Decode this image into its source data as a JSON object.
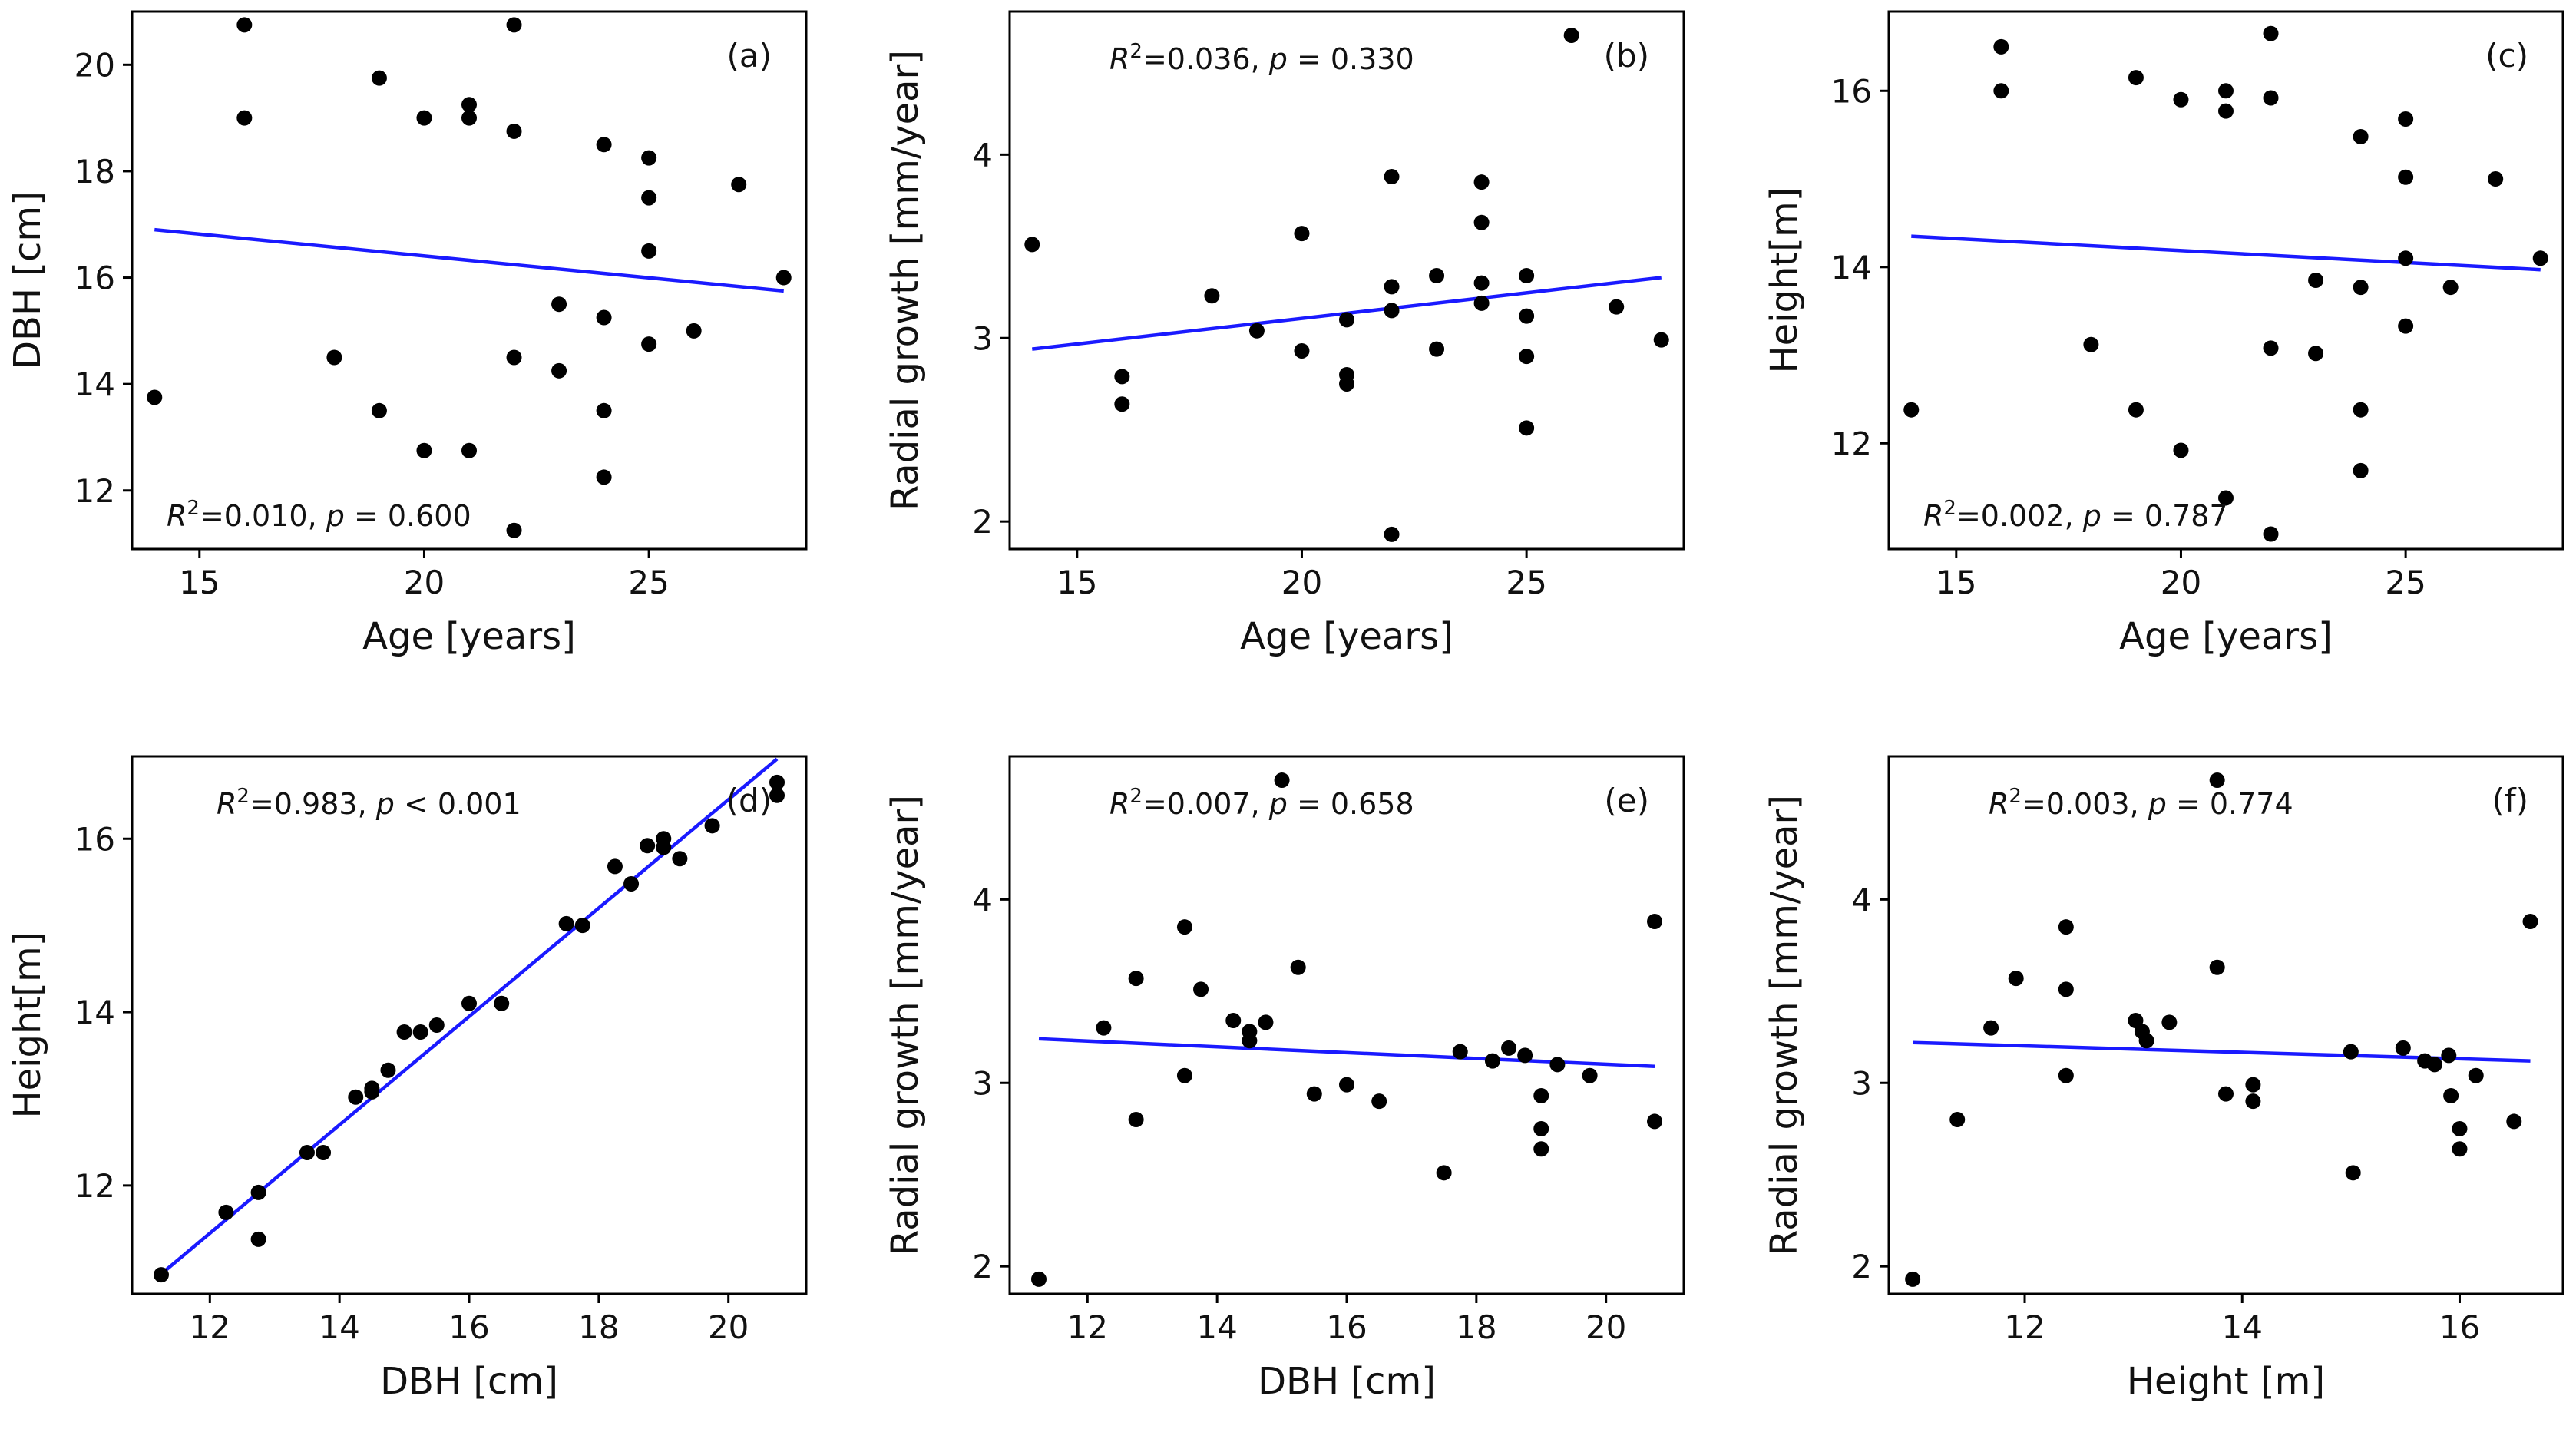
{
  "chart_data": [
    {
      "id": "a",
      "type": "scatter",
      "panel_label": "(a)",
      "xlabel": "Age [years]",
      "ylabel": "DBH [cm]",
      "xlim": [
        13.5,
        28.5
      ],
      "ylim": [
        10.9,
        21.0
      ],
      "xticks": [
        15,
        20,
        25
      ],
      "yticks": [
        12,
        14,
        16,
        18,
        20
      ],
      "stat_r2": "0.010",
      "stat_p": "p = 0.600",
      "stat_position": "bottom-left",
      "points": [
        [
          14,
          13.75
        ],
        [
          16,
          20.75
        ],
        [
          16,
          19.0
        ],
        [
          18,
          14.5
        ],
        [
          19,
          19.75
        ],
        [
          19,
          13.5
        ],
        [
          20,
          19.0
        ],
        [
          20,
          12.75
        ],
        [
          21,
          19.25
        ],
        [
          21,
          19.0
        ],
        [
          21,
          12.75
        ],
        [
          22,
          20.75
        ],
        [
          22,
          18.75
        ],
        [
          22,
          14.5
        ],
        [
          22,
          11.25
        ],
        [
          23,
          15.5
        ],
        [
          23,
          14.25
        ],
        [
          24,
          18.5
        ],
        [
          24,
          15.25
        ],
        [
          24,
          13.5
        ],
        [
          24,
          12.25
        ],
        [
          25,
          18.25
        ],
        [
          25,
          17.5
        ],
        [
          25,
          16.5
        ],
        [
          25,
          14.75
        ],
        [
          26,
          15.0
        ],
        [
          27,
          17.75
        ],
        [
          28,
          16.0
        ]
      ],
      "fit_line": [
        [
          14,
          16.9
        ],
        [
          28,
          15.75
        ]
      ]
    },
    {
      "id": "b",
      "type": "scatter",
      "panel_label": "(b)",
      "xlabel": "Age [years]",
      "ylabel": "Radial growth [mm/year]",
      "xlim": [
        13.5,
        28.5
      ],
      "ylim": [
        1.85,
        4.78
      ],
      "xticks": [
        15,
        20,
        25
      ],
      "yticks": [
        2,
        3,
        4
      ],
      "stat_r2": "0.036",
      "stat_p": "p = 0.330",
      "stat_position": "top-left",
      "points": [
        [
          14,
          3.51
        ],
        [
          16,
          2.79
        ],
        [
          16,
          2.64
        ],
        [
          18,
          3.23
        ],
        [
          19,
          3.04
        ],
        [
          20,
          3.57
        ],
        [
          20,
          2.93
        ],
        [
          21,
          3.1
        ],
        [
          21,
          2.8
        ],
        [
          21,
          2.75
        ],
        [
          22,
          3.88
        ],
        [
          22,
          3.28
        ],
        [
          22,
          3.15
        ],
        [
          22,
          1.93
        ],
        [
          23,
          3.34
        ],
        [
          23,
          2.94
        ],
        [
          24,
          3.85
        ],
        [
          24,
          3.63
        ],
        [
          24,
          3.3
        ],
        [
          24,
          3.19
        ],
        [
          25,
          3.34
        ],
        [
          25,
          3.12
        ],
        [
          25,
          2.9
        ],
        [
          25,
          2.51
        ],
        [
          26,
          4.65
        ],
        [
          27,
          3.17
        ],
        [
          28,
          2.99
        ]
      ],
      "fit_line": [
        [
          14,
          2.94
        ],
        [
          28,
          3.33
        ]
      ]
    },
    {
      "id": "c",
      "type": "scatter",
      "panel_label": "(c)",
      "xlabel": "Age [years]",
      "ylabel": "Height[m]",
      "xlim": [
        13.5,
        28.5
      ],
      "ylim": [
        10.8,
        16.9
      ],
      "xticks": [
        15,
        20,
        25
      ],
      "yticks": [
        12,
        14,
        16
      ],
      "stat_r2": "0.002",
      "stat_p": "p = 0.787",
      "stat_position": "bottom-left",
      "points": [
        [
          14,
          12.38
        ],
        [
          16,
          16.5
        ],
        [
          16,
          16.0
        ],
        [
          18,
          13.12
        ],
        [
          19,
          16.15
        ],
        [
          19,
          12.38
        ],
        [
          20,
          15.9
        ],
        [
          20,
          11.92
        ],
        [
          21,
          16.0
        ],
        [
          21,
          15.77
        ],
        [
          21,
          11.38
        ],
        [
          22,
          16.65
        ],
        [
          22,
          15.92
        ],
        [
          22,
          13.08
        ],
        [
          22,
          10.97
        ],
        [
          23,
          13.85
        ],
        [
          23,
          13.02
        ],
        [
          24,
          15.48
        ],
        [
          24,
          13.77
        ],
        [
          24,
          12.38
        ],
        [
          24,
          11.69
        ],
        [
          25,
          15.68
        ],
        [
          25,
          15.02
        ],
        [
          25,
          14.1
        ],
        [
          25,
          13.33
        ],
        [
          26,
          13.77
        ],
        [
          27,
          15.0
        ],
        [
          28,
          14.1
        ]
      ],
      "fit_line": [
        [
          14,
          14.35
        ],
        [
          28,
          13.97
        ]
      ]
    },
    {
      "id": "d",
      "type": "scatter",
      "panel_label": "(d)",
      "xlabel": "DBH [cm]",
      "ylabel": "Height[m]",
      "xlim": [
        10.8,
        21.2
      ],
      "ylim": [
        10.75,
        16.95
      ],
      "xticks": [
        12,
        14,
        16,
        18,
        20
      ],
      "yticks": [
        12,
        14,
        16
      ],
      "stat_r2": "0.983",
      "stat_p": "p < 0.001",
      "stat_position": "top-left",
      "points": [
        [
          11.25,
          10.97
        ],
        [
          12.25,
          11.69
        ],
        [
          12.75,
          11.92
        ],
        [
          12.75,
          11.38
        ],
        [
          13.5,
          12.38
        ],
        [
          13.75,
          12.38
        ],
        [
          14.25,
          13.02
        ],
        [
          14.5,
          13.12
        ],
        [
          14.5,
          13.08
        ],
        [
          14.75,
          13.33
        ],
        [
          15.0,
          13.77
        ],
        [
          15.25,
          13.77
        ],
        [
          15.5,
          13.85
        ],
        [
          16.0,
          14.1
        ],
        [
          16.5,
          14.1
        ],
        [
          17.5,
          15.02
        ],
        [
          17.75,
          15.0
        ],
        [
          18.25,
          15.68
        ],
        [
          18.5,
          15.48
        ],
        [
          18.75,
          15.92
        ],
        [
          19.0,
          16.0
        ],
        [
          19.0,
          15.9
        ],
        [
          19.25,
          15.77
        ],
        [
          19.75,
          16.15
        ],
        [
          20.75,
          16.65
        ],
        [
          20.75,
          16.5
        ]
      ],
      "fit_line": [
        [
          11.25,
          10.98
        ],
        [
          20.75,
          16.92
        ]
      ]
    },
    {
      "id": "e",
      "type": "scatter",
      "panel_label": "(e)",
      "xlabel": "DBH [cm]",
      "ylabel": "Radial growth [mm/year]",
      "xlim": [
        10.8,
        21.2
      ],
      "ylim": [
        1.85,
        4.78
      ],
      "xticks": [
        12,
        14,
        16,
        18,
        20
      ],
      "yticks": [
        2,
        3,
        4
      ],
      "stat_r2": "0.007",
      "stat_p": "p = 0.658",
      "stat_position": "top-left",
      "points": [
        [
          11.25,
          1.93
        ],
        [
          12.25,
          3.3
        ],
        [
          12.75,
          3.57
        ],
        [
          12.75,
          2.8
        ],
        [
          13.5,
          3.85
        ],
        [
          13.5,
          3.04
        ],
        [
          13.75,
          3.51
        ],
        [
          14.25,
          3.34
        ],
        [
          14.5,
          3.28
        ],
        [
          14.5,
          3.23
        ],
        [
          14.75,
          3.33
        ],
        [
          15.0,
          4.65
        ],
        [
          15.25,
          3.63
        ],
        [
          15.5,
          2.94
        ],
        [
          16.0,
          2.99
        ],
        [
          16.5,
          2.9
        ],
        [
          17.5,
          2.51
        ],
        [
          17.75,
          3.17
        ],
        [
          18.25,
          3.12
        ],
        [
          18.5,
          3.19
        ],
        [
          18.75,
          3.15
        ],
        [
          19.0,
          2.93
        ],
        [
          19.0,
          2.75
        ],
        [
          19.0,
          2.64
        ],
        [
          19.25,
          3.1
        ],
        [
          19.75,
          3.04
        ],
        [
          20.75,
          3.88
        ],
        [
          20.75,
          2.79
        ]
      ],
      "fit_line": [
        [
          11.25,
          3.24
        ],
        [
          20.75,
          3.09
        ]
      ]
    },
    {
      "id": "f",
      "type": "scatter",
      "panel_label": "(f)",
      "xlabel": "Height [m]",
      "ylabel": "Radial growth [mm/year]",
      "xlim": [
        10.75,
        16.95
      ],
      "ylim": [
        1.85,
        4.78
      ],
      "xticks": [
        12,
        14,
        16
      ],
      "yticks": [
        2,
        3,
        4
      ],
      "stat_r2": "0.003",
      "stat_p": "p = 0.774",
      "stat_position": "top-left",
      "points": [
        [
          10.97,
          1.93
        ],
        [
          11.38,
          2.8
        ],
        [
          11.69,
          3.3
        ],
        [
          11.92,
          3.57
        ],
        [
          12.38,
          3.85
        ],
        [
          12.38,
          3.51
        ],
        [
          12.38,
          3.04
        ],
        [
          13.02,
          3.34
        ],
        [
          13.08,
          3.28
        ],
        [
          13.12,
          3.23
        ],
        [
          13.33,
          3.33
        ],
        [
          13.77,
          4.65
        ],
        [
          13.77,
          3.63
        ],
        [
          13.85,
          2.94
        ],
        [
          14.1,
          2.99
        ],
        [
          14.1,
          2.9
        ],
        [
          15.0,
          3.17
        ],
        [
          15.02,
          2.51
        ],
        [
          15.48,
          3.19
        ],
        [
          15.68,
          3.12
        ],
        [
          15.77,
          3.1
        ],
        [
          15.9,
          3.15
        ],
        [
          15.92,
          2.93
        ],
        [
          16.0,
          2.75
        ],
        [
          16.0,
          2.64
        ],
        [
          16.15,
          3.04
        ],
        [
          16.5,
          2.79
        ],
        [
          16.65,
          3.88
        ]
      ],
      "fit_line": [
        [
          10.97,
          3.22
        ],
        [
          16.65,
          3.12
        ]
      ]
    }
  ],
  "colors": {
    "fit_line": "#1a1aff",
    "points": "#000000",
    "axes": "#000000"
  }
}
